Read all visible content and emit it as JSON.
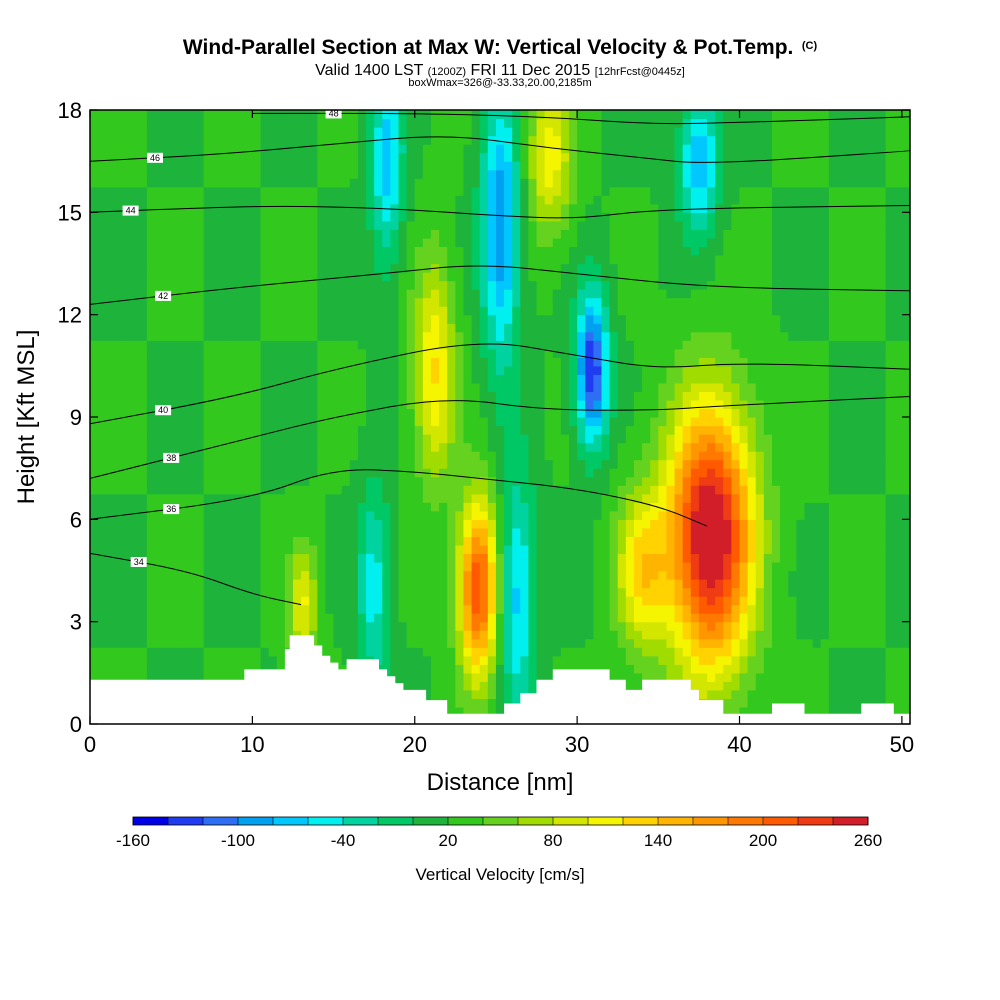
{
  "header": {
    "title": "Wind-Parallel Section at Max W: Vertical Velocity & Pot.Temp.",
    "title_tag": "(C)",
    "subtitle_pre": "Valid 1400 LST",
    "subtitle_utc": "(1200Z)",
    "subtitle_date": "FRI 11 Dec 2015",
    "subtitle_fcst": "[12hrFcst@0445z]",
    "box_info": "boxWmax=326@-33.33,20.00,2185m"
  },
  "chart_data": {
    "type": "heatmap",
    "title": "Wind-Parallel Section at Max W: Vertical Velocity & Pot.Temp.",
    "xlabel": "Distance [nm]",
    "ylabel": "Height [Kft MSL]",
    "xlim": [
      0,
      50.5
    ],
    "ylim": [
      0,
      18
    ],
    "x_ticks": [
      0,
      10,
      20,
      30,
      40,
      50
    ],
    "y_ticks": [
      0,
      3,
      6,
      9,
      12,
      15,
      18
    ],
    "colorbar": {
      "label": "Vertical Velocity [cm/s]",
      "tick_labels": [
        -160,
        -100,
        -40,
        20,
        80,
        140,
        200,
        260
      ],
      "min": -160,
      "max": 260,
      "step": 20,
      "colors": [
        "#0000e6",
        "#1f3cf0",
        "#2d6ef5",
        "#00a0f0",
        "#00c8ff",
        "#00f0f0",
        "#00d2a0",
        "#00c864",
        "#1eb43c",
        "#32c81e",
        "#64d21e",
        "#a0dc00",
        "#d2e600",
        "#f5f500",
        "#ffd200",
        "#ffb400",
        "#ff9600",
        "#ff7800",
        "#ff5a00",
        "#f03c14",
        "#d21e28"
      ]
    },
    "field": {
      "description": "vertical velocity cm/s",
      "features": [
        {
          "x": 38.2,
          "y": 5.5,
          "value": 260,
          "sx": 2.6,
          "sy": 3.8
        },
        {
          "x": 23.9,
          "y": 4.0,
          "value": 200,
          "sx": 1.2,
          "sy": 2.6
        },
        {
          "x": 21.2,
          "y": 10.4,
          "value": 100,
          "sx": 1.3,
          "sy": 3.2
        },
        {
          "x": 28.3,
          "y": 16.6,
          "value": 90,
          "sx": 1.4,
          "sy": 2.2
        },
        {
          "x": 30.9,
          "y": 10.4,
          "value": -160,
          "sx": 1.0,
          "sy": 2.2
        },
        {
          "x": 25.3,
          "y": 14.5,
          "value": -120,
          "sx": 1.2,
          "sy": 3.8
        },
        {
          "x": 18.3,
          "y": 16.5,
          "value": -90,
          "sx": 1.0,
          "sy": 3.0
        },
        {
          "x": 37.5,
          "y": 16.5,
          "value": -100,
          "sx": 1.2,
          "sy": 2.0
        },
        {
          "x": 26.3,
          "y": 3.8,
          "value": -90,
          "sx": 1.1,
          "sy": 3.5
        },
        {
          "x": 17.5,
          "y": 4.0,
          "value": -70,
          "sx": 1.0,
          "sy": 3.0
        },
        {
          "x": 13.1,
          "y": 3.5,
          "value": 80,
          "sx": 0.9,
          "sy": 1.7
        },
        {
          "x": 34.0,
          "y": 4.5,
          "value": 100,
          "sx": 1.6,
          "sy": 2.3
        }
      ]
    },
    "theta_contours": [
      {
        "label": "34",
        "points": [
          [
            0,
            5.0
          ],
          [
            6,
            4.5
          ],
          [
            10,
            3.8
          ],
          [
            13,
            3.5
          ]
        ]
      },
      {
        "label": "36",
        "points": [
          [
            0,
            6.0
          ],
          [
            10,
            6.6
          ],
          [
            15,
            7.5
          ],
          [
            20,
            7.4
          ],
          [
            24,
            7.2
          ],
          [
            30,
            6.9
          ],
          [
            35,
            6.4
          ],
          [
            38,
            5.8
          ]
        ]
      },
      {
        "label": "38",
        "points": [
          [
            0,
            7.2
          ],
          [
            10,
            8.4
          ],
          [
            15,
            9.0
          ],
          [
            22,
            9.6
          ],
          [
            28,
            9.2
          ],
          [
            35,
            9.2
          ],
          [
            38,
            9.3
          ],
          [
            42,
            9.4
          ],
          [
            50.5,
            9.6
          ]
        ]
      },
      {
        "label": "40",
        "points": [
          [
            0,
            8.8
          ],
          [
            9,
            9.6
          ],
          [
            15,
            10.4
          ],
          [
            24,
            11.3
          ],
          [
            30,
            10.8
          ],
          [
            35,
            10.4
          ],
          [
            40,
            10.6
          ],
          [
            50.5,
            10.4
          ]
        ]
      },
      {
        "label": "42",
        "points": [
          [
            0,
            12.3
          ],
          [
            9,
            12.8
          ],
          [
            18,
            13.2
          ],
          [
            24,
            13.5
          ],
          [
            30,
            13.2
          ],
          [
            38,
            12.8
          ],
          [
            50.5,
            12.7
          ]
        ]
      },
      {
        "label": "44",
        "points": [
          [
            0,
            15.0
          ],
          [
            5,
            15.1
          ],
          [
            12,
            15.2
          ],
          [
            19,
            15.1
          ],
          [
            25,
            14.9
          ],
          [
            30,
            14.8
          ],
          [
            35,
            15.1
          ],
          [
            50.5,
            15.2
          ]
        ]
      },
      {
        "label": "46",
        "points": [
          [
            0,
            16.5
          ],
          [
            8,
            16.7
          ],
          [
            15,
            17.0
          ],
          [
            22,
            17.3
          ],
          [
            28,
            16.9
          ],
          [
            34,
            16.6
          ],
          [
            38,
            16.4
          ],
          [
            50.5,
            16.8
          ]
        ]
      },
      {
        "label": "48",
        "points": [
          [
            10,
            17.9
          ],
          [
            20,
            17.9
          ],
          [
            28,
            17.8
          ],
          [
            34,
            17.6
          ],
          [
            38,
            17.6
          ],
          [
            50.5,
            17.8
          ]
        ]
      }
    ],
    "terrain": [
      [
        0,
        1.3
      ],
      [
        9.5,
        1.3
      ],
      [
        9.5,
        1.6
      ],
      [
        12,
        1.6
      ],
      [
        12,
        2.2
      ],
      [
        12.3,
        2.2
      ],
      [
        12.3,
        2.6
      ],
      [
        13.8,
        2.6
      ],
      [
        13.8,
        2.3
      ],
      [
        14.3,
        2.3
      ],
      [
        14.3,
        2.0
      ],
      [
        14.8,
        2.0
      ],
      [
        14.8,
        1.8
      ],
      [
        15.3,
        1.8
      ],
      [
        15.3,
        1.6
      ],
      [
        15.8,
        1.6
      ],
      [
        15.8,
        1.9
      ],
      [
        17.8,
        1.9
      ],
      [
        17.8,
        1.6
      ],
      [
        18.3,
        1.6
      ],
      [
        18.3,
        1.4
      ],
      [
        18.8,
        1.4
      ],
      [
        18.8,
        1.2
      ],
      [
        19.3,
        1.2
      ],
      [
        19.3,
        1.0
      ],
      [
        20.7,
        1.0
      ],
      [
        20.7,
        0.7
      ],
      [
        22,
        0.7
      ],
      [
        22,
        0.3
      ],
      [
        25.5,
        0.3
      ],
      [
        25.5,
        0.6
      ],
      [
        26.5,
        0.6
      ],
      [
        26.5,
        0.9
      ],
      [
        27.5,
        0.9
      ],
      [
        27.5,
        1.3
      ],
      [
        28.5,
        1.3
      ],
      [
        28.5,
        1.6
      ],
      [
        32,
        1.6
      ],
      [
        32,
        1.3
      ],
      [
        33,
        1.3
      ],
      [
        33,
        1.0
      ],
      [
        34,
        1.0
      ],
      [
        34,
        1.3
      ],
      [
        37,
        1.3
      ],
      [
        37,
        1.0
      ],
      [
        37.5,
        1.0
      ],
      [
        37.5,
        0.7
      ],
      [
        39,
        0.7
      ],
      [
        39,
        0.3
      ],
      [
        42,
        0.3
      ],
      [
        42,
        0.6
      ],
      [
        44,
        0.6
      ],
      [
        44,
        0.3
      ],
      [
        47.5,
        0.3
      ],
      [
        47.5,
        0.6
      ],
      [
        49.5,
        0.6
      ],
      [
        49.5,
        0.3
      ],
      [
        50.5,
        0.3
      ],
      [
        50.5,
        0
      ]
    ]
  }
}
